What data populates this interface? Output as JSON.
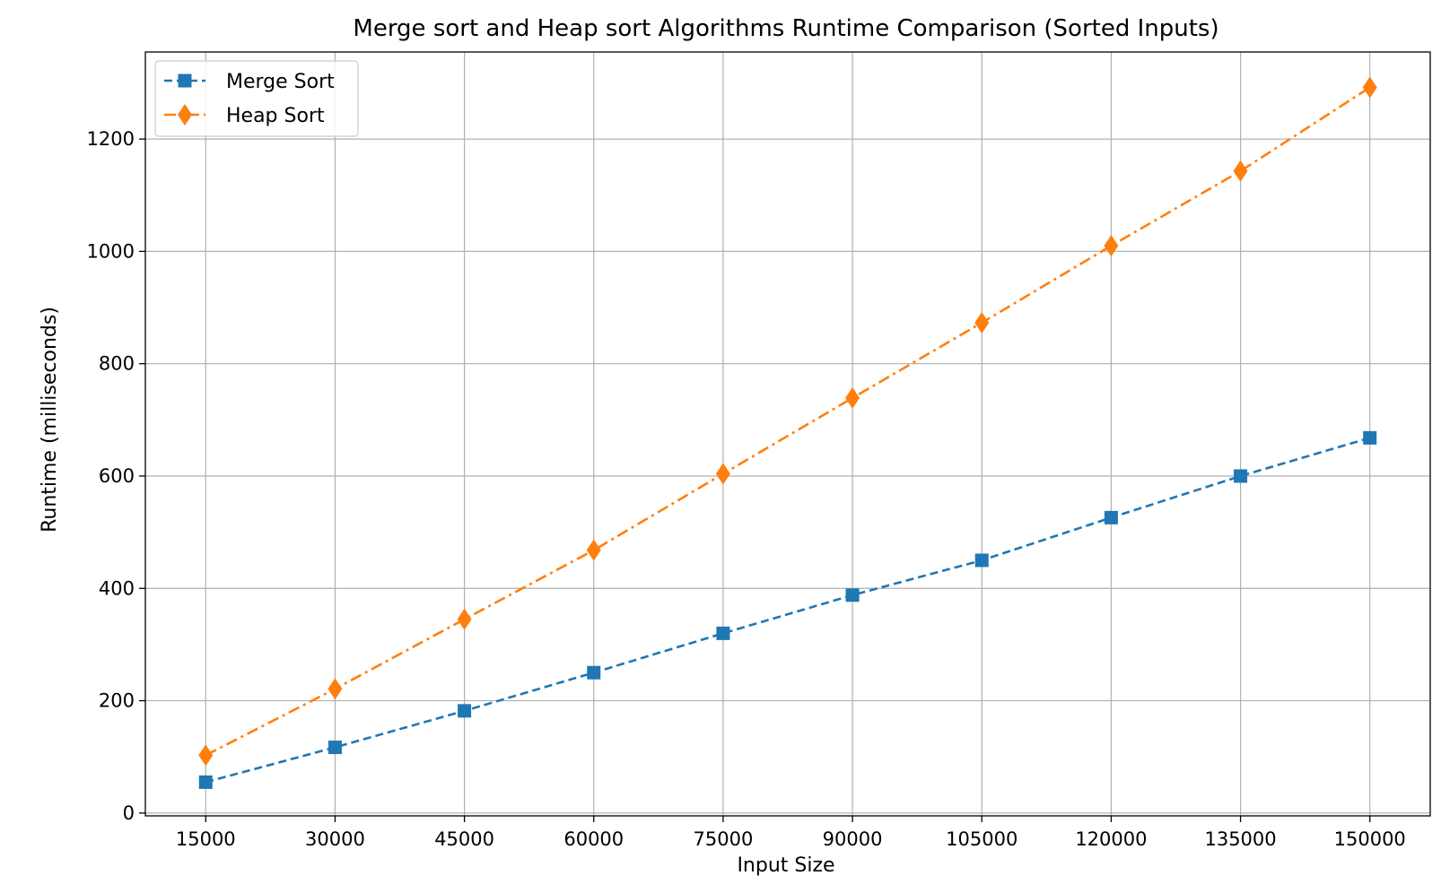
{
  "chart_data": {
    "type": "line",
    "title": "Merge sort and Heap sort Algorithms Runtime Comparison (Sorted Inputs)",
    "xlabel": "Input Size",
    "ylabel": "Runtime (milliseconds)",
    "x": [
      15000,
      30000,
      45000,
      60000,
      75000,
      90000,
      105000,
      120000,
      135000,
      150000
    ],
    "x_tick_labels": [
      "15000",
      "30000",
      "45000",
      "60000",
      "75000",
      "90000",
      "105000",
      "120000",
      "135000",
      "150000"
    ],
    "y_ticks": [
      0,
      200,
      400,
      600,
      800,
      1000,
      1200
    ],
    "y_tick_labels": [
      "0",
      "200",
      "400",
      "600",
      "800",
      "1000",
      "1200"
    ],
    "xlim": [
      8000,
      157000
    ],
    "ylim": [
      -5,
      1355
    ],
    "grid": true,
    "legend_position": "top-left",
    "series": [
      {
        "name": "Merge Sort",
        "color": "#1f77b4",
        "marker": "square",
        "linestyle": "dashed",
        "values": [
          55,
          117,
          182,
          250,
          320,
          388,
          450,
          526,
          600,
          668
        ]
      },
      {
        "name": "Heap Sort",
        "color": "#ff7f0e",
        "marker": "diamond",
        "linestyle": "dashdot",
        "values": [
          103,
          221,
          345,
          468,
          604,
          739,
          873,
          1010,
          1143,
          1292
        ]
      }
    ]
  }
}
